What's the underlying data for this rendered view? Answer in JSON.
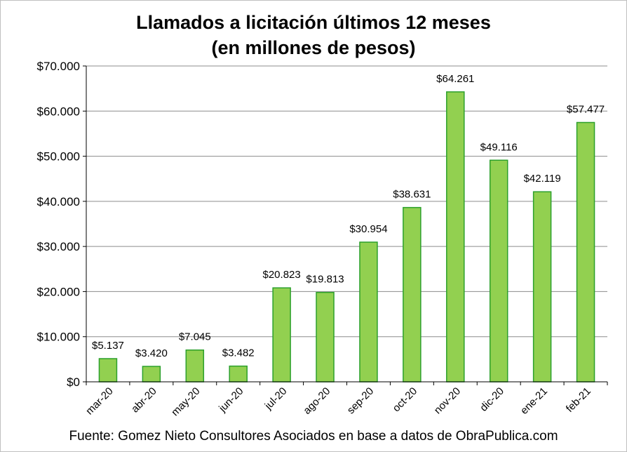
{
  "chart_data": {
    "type": "bar",
    "title_line1": "Llamados a licitación últimos 12 meses",
    "title_line2": "(en millones de pesos)",
    "categories": [
      "mar-20",
      "abr-20",
      "may-20",
      "jun-20",
      "jul-20",
      "ago-20",
      "sep-20",
      "oct-20",
      "nov-20",
      "dic-20",
      "ene-21",
      "feb-21"
    ],
    "values": [
      5137,
      3420,
      7045,
      3482,
      20823,
      19813,
      30954,
      38631,
      64261,
      49116,
      42119,
      57477
    ],
    "data_labels": [
      "$5.137",
      "$3.420",
      "$7.045",
      "$3.482",
      "$20.823",
      "$19.813",
      "$30.954",
      "$38.631",
      "$64.261",
      "$49.116",
      "$42.119",
      "$57.477"
    ],
    "y_ticks": [
      0,
      10000,
      20000,
      30000,
      40000,
      50000,
      60000,
      70000
    ],
    "y_tick_labels": [
      "$0",
      "$10.000",
      "$20.000",
      "$30.000",
      "$40.000",
      "$50.000",
      "$60.000",
      "$70.000"
    ],
    "ylim": [
      0,
      70000
    ],
    "grid": true,
    "legend": "none",
    "bar_fill": "#92d050",
    "bar_stroke": "#2ca02c"
  },
  "source": "Fuente: Gomez Nieto Consultores Asociados en base a datos de ObraPublica.com"
}
